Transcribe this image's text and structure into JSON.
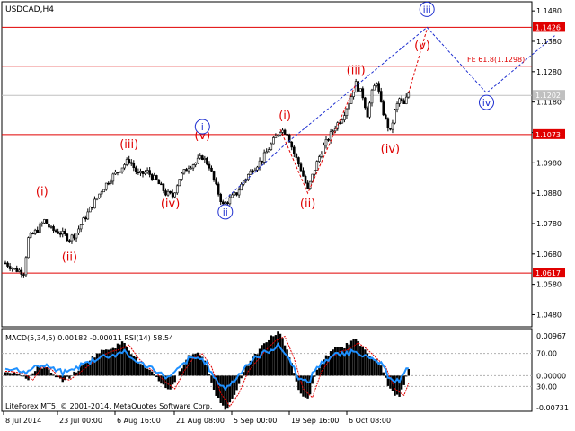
{
  "chart_title": "USDCAD,H4",
  "price_axis": {
    "ticks": [
      "1.1480",
      "1.1380",
      "1.1280",
      "1.1180",
      "1.1080",
      "1.0980",
      "1.0880",
      "1.0780",
      "1.0680",
      "1.0580",
      "1.0480"
    ],
    "price_tags": [
      {
        "label": "1.1426",
        "value": 1.1426,
        "color": "#e00000"
      },
      {
        "label": "1.1202",
        "value": 1.1202,
        "color": "#c0c0c0"
      },
      {
        "label": "1.1073",
        "value": 1.1073,
        "color": "#e00000"
      },
      {
        "label": "1.0617",
        "value": 1.0617,
        "color": "#e00000"
      }
    ]
  },
  "levels": [
    {
      "value": 1.1426,
      "color": "#e00000"
    },
    {
      "value": 1.1298,
      "color": "#e00000"
    },
    {
      "value": 1.1202,
      "color": "#c0c0c0"
    },
    {
      "value": 1.1073,
      "color": "#e00000"
    },
    {
      "value": 1.0617,
      "color": "#e00000"
    }
  ],
  "fe_label": "FE 61.8(1.1298)",
  "wave_labels": {
    "red": [
      {
        "text": "(i)",
        "bar": 16,
        "price": 1.0855,
        "pos": "above"
      },
      {
        "text": "(ii)",
        "bar": 28,
        "price": 1.0705,
        "pos": "below"
      },
      {
        "text": "(iii)",
        "bar": 54,
        "price": 1.101,
        "pos": "above"
      },
      {
        "text": "(iv)",
        "bar": 72,
        "price": 1.088,
        "pos": "below"
      },
      {
        "text": "(v)",
        "bar": 86,
        "price": 1.104,
        "pos": "above"
      },
      {
        "text": "(i)",
        "bar": 122,
        "price": 1.1105,
        "pos": "above"
      },
      {
        "text": "(ii)",
        "bar": 132,
        "price": 1.088,
        "pos": "below"
      },
      {
        "text": "(iii)",
        "bar": 153,
        "price": 1.1255,
        "pos": "above"
      },
      {
        "text": "(iv)",
        "bar": 168,
        "price": 1.106,
        "pos": "below"
      },
      {
        "text": "(v)",
        "bar": 182,
        "price": 1.14,
        "pos": "below"
      }
    ],
    "blue": [
      {
        "text": "i",
        "bar": 86,
        "price": 1.104
      },
      {
        "text": "ii",
        "bar": 96,
        "price": 1.086
      },
      {
        "text": "iii",
        "bar": 184,
        "price": 1.1426
      },
      {
        "text": "iv",
        "bar": 210,
        "price": 1.122
      }
    ]
  },
  "indicator": {
    "title": "MACD(5,34,5) 0.00182 -0.00011 RSI(14) 58.54",
    "ticks": [
      "0.00967",
      "70.00",
      "0.00000",
      "30.00",
      "-0.00731"
    ]
  },
  "x_axis_labels": [
    "8 Jul 2014",
    "23 Jul 00:00",
    "6 Aug 16:00",
    "21 Aug 08:00",
    "5 Sep 00:00",
    "19 Sep 16:00",
    "6 Oct 08:00"
  ],
  "copyright": "LiteForex MT5, © 2001-2014, MetaQuotes Software Corp.",
  "colors": {
    "red_wave": "#e00000",
    "blue_wave": "#1e2fd0",
    "macd_hist": "#000000",
    "rsi_line": "#1e90ff",
    "signal_line": "#e00000"
  },
  "chart_data": {
    "type": "candlestick",
    "symbol": "USDCAD",
    "timeframe": "H4",
    "ylim": [
      1.044,
      1.151
    ],
    "close_path": [
      [
        0,
        1.065
      ],
      [
        4,
        1.063
      ],
      [
        8,
        1.062
      ],
      [
        10,
        1.073
      ],
      [
        14,
        1.076
      ],
      [
        17,
        1.079
      ],
      [
        20,
        1.076
      ],
      [
        24,
        1.075
      ],
      [
        28,
        1.073
      ],
      [
        31,
        1.075
      ],
      [
        34,
        1.079
      ],
      [
        38,
        1.084
      ],
      [
        42,
        1.089
      ],
      [
        46,
        1.093
      ],
      [
        50,
        1.096
      ],
      [
        54,
        1.099
      ],
      [
        58,
        1.094
      ],
      [
        62,
        1.095
      ],
      [
        66,
        1.092
      ],
      [
        70,
        1.088
      ],
      [
        73,
        1.087
      ],
      [
        76,
        1.093
      ],
      [
        80,
        1.097
      ],
      [
        83,
        1.098
      ],
      [
        86,
        1.1
      ],
      [
        89,
        1.097
      ],
      [
        92,
        1.09
      ],
      [
        95,
        1.084
      ],
      [
        98,
        1.086
      ],
      [
        101,
        1.088
      ],
      [
        104,
        1.092
      ],
      [
        108,
        1.096
      ],
      [
        112,
        1.099
      ],
      [
        116,
        1.104
      ],
      [
        120,
        1.109
      ],
      [
        123,
        1.108
      ],
      [
        126,
        1.101
      ],
      [
        129,
        1.096
      ],
      [
        132,
        1.089
      ],
      [
        135,
        1.096
      ],
      [
        138,
        1.102
      ],
      [
        141,
        1.106
      ],
      [
        144,
        1.11
      ],
      [
        147,
        1.113
      ],
      [
        150,
        1.118
      ],
      [
        153,
        1.124
      ],
      [
        156,
        1.12
      ],
      [
        158,
        1.114
      ],
      [
        160,
        1.121
      ],
      [
        162,
        1.125
      ],
      [
        164,
        1.117
      ],
      [
        166,
        1.112
      ],
      [
        168,
        1.108
      ],
      [
        170,
        1.115
      ],
      [
        172,
        1.119
      ],
      [
        174,
        1.117
      ],
      [
        176,
        1.121
      ]
    ],
    "projection_red": [
      [
        176,
        1.121
      ],
      [
        184,
        1.142
      ]
    ],
    "projection_blue": [
      [
        96,
        1.086
      ],
      [
        122,
        1.104
      ],
      [
        184,
        1.1426
      ],
      [
        210,
        1.121
      ],
      [
        240,
        1.14
      ]
    ],
    "macd_hist": [
      [
        0,
        0.001
      ],
      [
        6,
        0.0005
      ],
      [
        10,
        -0.001
      ],
      [
        14,
        0.002
      ],
      [
        18,
        0.0015
      ],
      [
        22,
        -0.0005
      ],
      [
        26,
        -0.001
      ],
      [
        30,
        0.0005
      ],
      [
        36,
        0.003
      ],
      [
        40,
        0.0045
      ],
      [
        44,
        0.0055
      ],
      [
        48,
        0.006
      ],
      [
        52,
        0.007
      ],
      [
        56,
        0.004
      ],
      [
        60,
        0.002
      ],
      [
        64,
        0.0005
      ],
      [
        68,
        -0.0015
      ],
      [
        72,
        -0.003
      ],
      [
        76,
        0.001
      ],
      [
        80,
        0.004
      ],
      [
        84,
        0.005
      ],
      [
        88,
        0.002
      ],
      [
        92,
        -0.004
      ],
      [
        96,
        -0.007
      ],
      [
        100,
        -0.004
      ],
      [
        104,
        0.001
      ],
      [
        108,
        0.0035
      ],
      [
        112,
        0.006
      ],
      [
        116,
        0.008
      ],
      [
        120,
        0.009
      ],
      [
        124,
        0.004
      ],
      [
        128,
        -0.003
      ],
      [
        132,
        -0.005
      ],
      [
        136,
        0.001
      ],
      [
        140,
        0.004
      ],
      [
        144,
        0.0055
      ],
      [
        148,
        0.006
      ],
      [
        152,
        0.0075
      ],
      [
        156,
        0.006
      ],
      [
        160,
        0.004
      ],
      [
        164,
        0.002
      ],
      [
        168,
        -0.003
      ],
      [
        172,
        -0.0045
      ],
      [
        176,
        0.001
      ]
    ]
  }
}
